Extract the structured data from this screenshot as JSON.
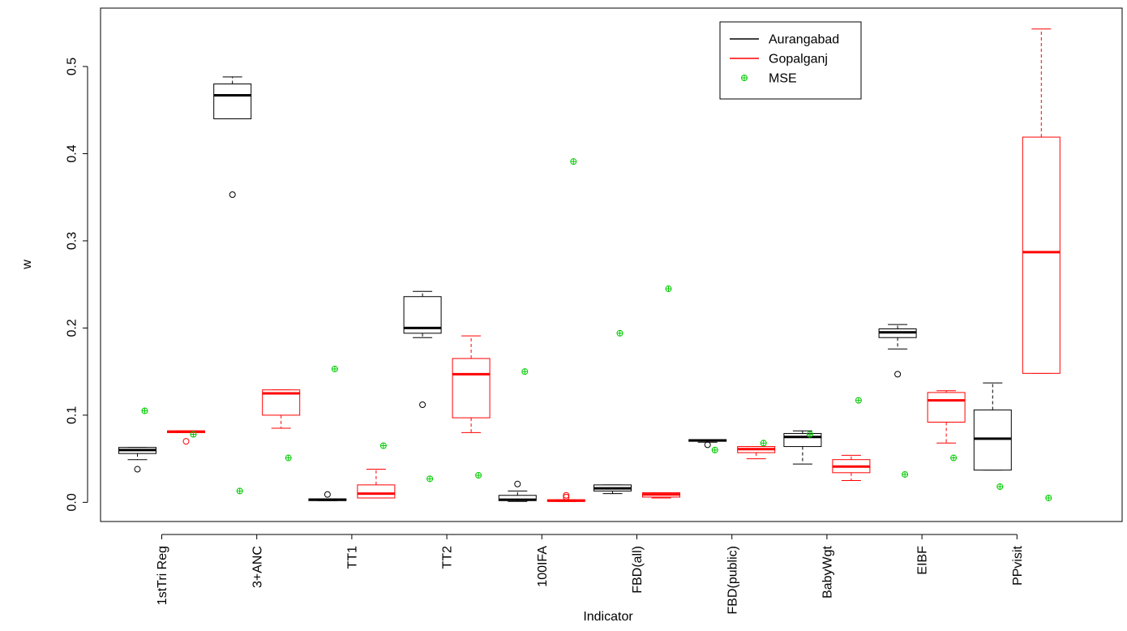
{
  "chart_data": {
    "type": "boxplot",
    "xlabel": "Indicator",
    "ylabel": "w",
    "ylim": [
      -0.022,
      0.567
    ],
    "yticks": [
      0.0,
      0.1,
      0.2,
      0.3,
      0.4,
      0.5
    ],
    "ytick_labels": [
      "0.0",
      "0.1",
      "0.2",
      "0.3",
      "0.4",
      "0.5"
    ],
    "categories": [
      "1stTri Reg",
      "3+ANC",
      "TT1",
      "TT2",
      "100IFA",
      "FBD(all)",
      "FBD(public)",
      "BabyWgt",
      "EIBF",
      "PPvisit"
    ],
    "legend": {
      "position": "top-right",
      "items": [
        {
          "label": "Aurangabad",
          "kind": "line",
          "color": "#000000"
        },
        {
          "label": "Gopalganj",
          "kind": "line",
          "color": "#ff0000"
        },
        {
          "label": "MSE",
          "kind": "point",
          "color": "#00cc00"
        }
      ]
    },
    "series": [
      {
        "name": "Aurangabad",
        "color": "#000000",
        "boxes": [
          {
            "whisker_low": 0.049,
            "q1": 0.056,
            "median": 0.06,
            "q3": 0.063,
            "whisker_high": 0.063,
            "outliers": [
              0.038
            ]
          },
          {
            "whisker_low": 0.44,
            "q1": 0.44,
            "median": 0.467,
            "q3": 0.48,
            "whisker_high": 0.488,
            "outliers": [
              0.353
            ]
          },
          {
            "whisker_low": 0.002,
            "q1": 0.002,
            "median": 0.003,
            "q3": 0.004,
            "whisker_high": 0.004,
            "outliers": [
              0.009
            ]
          },
          {
            "whisker_low": 0.189,
            "q1": 0.194,
            "median": 0.2,
            "q3": 0.236,
            "whisker_high": 0.242,
            "outliers": [
              0.112
            ]
          },
          {
            "whisker_low": 0.001,
            "q1": 0.002,
            "median": 0.003,
            "q3": 0.008,
            "whisker_high": 0.013,
            "outliers": [
              0.021
            ]
          },
          {
            "whisker_low": 0.01,
            "q1": 0.013,
            "median": 0.016,
            "q3": 0.02,
            "whisker_high": 0.02,
            "outliers": []
          },
          {
            "whisker_low": 0.069,
            "q1": 0.07,
            "median": 0.071,
            "q3": 0.072,
            "whisker_high": 0.072,
            "outliers": [
              0.066
            ]
          },
          {
            "whisker_low": 0.044,
            "q1": 0.064,
            "median": 0.075,
            "q3": 0.079,
            "whisker_high": 0.082,
            "outliers": []
          },
          {
            "whisker_low": 0.176,
            "q1": 0.189,
            "median": 0.195,
            "q3": 0.199,
            "whisker_high": 0.204,
            "outliers": [
              0.147
            ]
          },
          {
            "whisker_low": 0.037,
            "q1": 0.037,
            "median": 0.073,
            "q3": 0.106,
            "whisker_high": 0.137,
            "outliers": []
          }
        ]
      },
      {
        "name": "Gopalganj",
        "color": "#ff0000",
        "boxes": [
          {
            "whisker_low": 0.08,
            "q1": 0.08,
            "median": 0.081,
            "q3": 0.082,
            "whisker_high": 0.082,
            "outliers": [
              0.07
            ]
          },
          {
            "whisker_low": 0.085,
            "q1": 0.1,
            "median": 0.125,
            "q3": 0.129,
            "whisker_high": 0.129,
            "outliers": []
          },
          {
            "whisker_low": 0.005,
            "q1": 0.005,
            "median": 0.01,
            "q3": 0.02,
            "whisker_high": 0.038,
            "outliers": []
          },
          {
            "whisker_low": 0.08,
            "q1": 0.097,
            "median": 0.147,
            "q3": 0.165,
            "whisker_high": 0.191,
            "outliers": []
          },
          {
            "whisker_low": 0.001,
            "q1": 0.001,
            "median": 0.002,
            "q3": 0.003,
            "whisker_high": 0.003,
            "outliers": [
              0.008,
              0.006
            ]
          },
          {
            "whisker_low": 0.005,
            "q1": 0.006,
            "median": 0.009,
            "q3": 0.011,
            "whisker_high": 0.011,
            "outliers": []
          },
          {
            "whisker_low": 0.05,
            "q1": 0.057,
            "median": 0.061,
            "q3": 0.064,
            "whisker_high": 0.064,
            "outliers": []
          },
          {
            "whisker_low": 0.025,
            "q1": 0.034,
            "median": 0.041,
            "q3": 0.049,
            "whisker_high": 0.054,
            "outliers": []
          },
          {
            "whisker_low": 0.068,
            "q1": 0.092,
            "median": 0.117,
            "q3": 0.126,
            "whisker_high": 0.128,
            "outliers": []
          },
          {
            "whisker_low": 0.148,
            "q1": 0.148,
            "median": 0.287,
            "q3": 0.419,
            "whisker_high": 0.543,
            "outliers": []
          }
        ]
      },
      {
        "name": "MSE",
        "color": "#00cc00",
        "points": [
          [
            0.105,
            0.078
          ],
          [
            0.013,
            0.051
          ],
          [
            0.153,
            0.065
          ],
          [
            0.027,
            0.031
          ],
          [
            0.15,
            0.391
          ],
          [
            0.194,
            0.245
          ],
          [
            0.06,
            0.068
          ],
          [
            0.078,
            0.117
          ],
          [
            0.032,
            0.051
          ],
          [
            0.018,
            0.005
          ]
        ]
      }
    ]
  }
}
